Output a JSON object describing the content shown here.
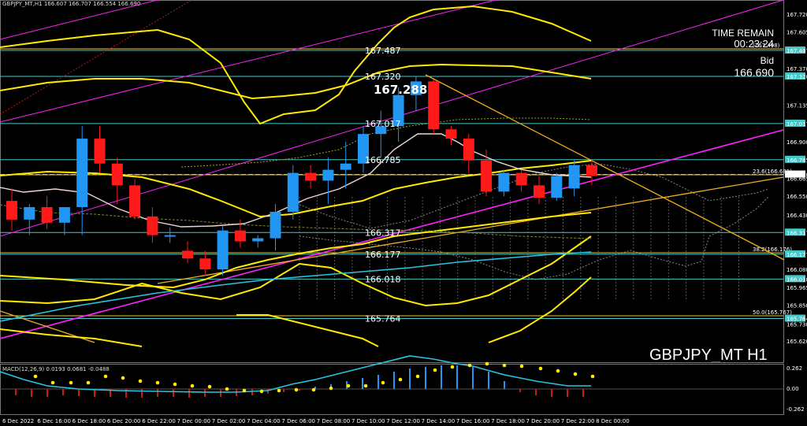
{
  "header": {
    "symbol_info": "GBPJPY_MT,H1  166.607 166.707 166.554 166.690"
  },
  "macd_label": "MACD(12,26,9) 0.0193 0.0681 -0.0488",
  "time_remain": {
    "label": "TIME REMAIN",
    "value": "00:23:24"
  },
  "bid": {
    "label": "Bid",
    "value": "166.690"
  },
  "symbol_big": "GBPJPY_MT H1",
  "price_axis": {
    "ticks": [
      "167.720",
      "167.605",
      "167.487",
      "167.370",
      "167.320",
      "167.135",
      "167.017",
      "166.900",
      "166.785",
      "166.690",
      "166.665",
      "166.550",
      "166.430",
      "166.317",
      "166.177",
      "166.080",
      "166.018",
      "165.965",
      "165.850",
      "165.764",
      "165.730",
      "165.620"
    ],
    "highlight": [
      "167.487",
      "167.320",
      "167.017",
      "166.785",
      "166.690",
      "166.317",
      "166.177",
      "166.018",
      "165.764"
    ]
  },
  "macd_axis": [
    "0.262",
    "0.00",
    "-0.262"
  ],
  "time_axis": [
    "6 Dec 2022",
    "6 Dec 16:00",
    "6 Dec 18:00",
    "6 Dec 20:00",
    "6 Dec 22:00",
    "7 Dec 00:00",
    "7 Dec 02:00",
    "7 Dec 04:00",
    "7 Dec 06:00",
    "7 Dec 08:00",
    "7 Dec 10:00",
    "7 Dec 12:00",
    "7 Dec 14:00",
    "7 Dec 16:00",
    "7 Dec 18:00",
    "7 Dec 20:00",
    "7 Dec 22:00",
    "8 Dec 00:00"
  ],
  "levels": [
    {
      "price": "167.487",
      "label": "167.487"
    },
    {
      "price": "167.320",
      "label": "167.320"
    },
    {
      "price": "167.017",
      "label": "167.017"
    },
    {
      "price": "166.785",
      "label": "166.785"
    },
    {
      "price": "166.317",
      "label": "166.317"
    },
    {
      "price": "166.177",
      "label": "166.177"
    },
    {
      "price": "166.018",
      "label": "166.018"
    },
    {
      "price": "165.764",
      "label": "165.764"
    }
  ],
  "fib_labels": [
    "23.6(166.681)",
    "38.2(166.176)",
    "50.0(165.767)",
    "(167.498)"
  ],
  "high_label": "167.288",
  "colors": {
    "up": "#2196f3",
    "down": "#ff1a1a",
    "level": "#46c8c8",
    "fib": "#e6c23c",
    "magenta": "#ff22ff",
    "yellow": "#ffea00",
    "cyan": "#27c6e0"
  }
}
